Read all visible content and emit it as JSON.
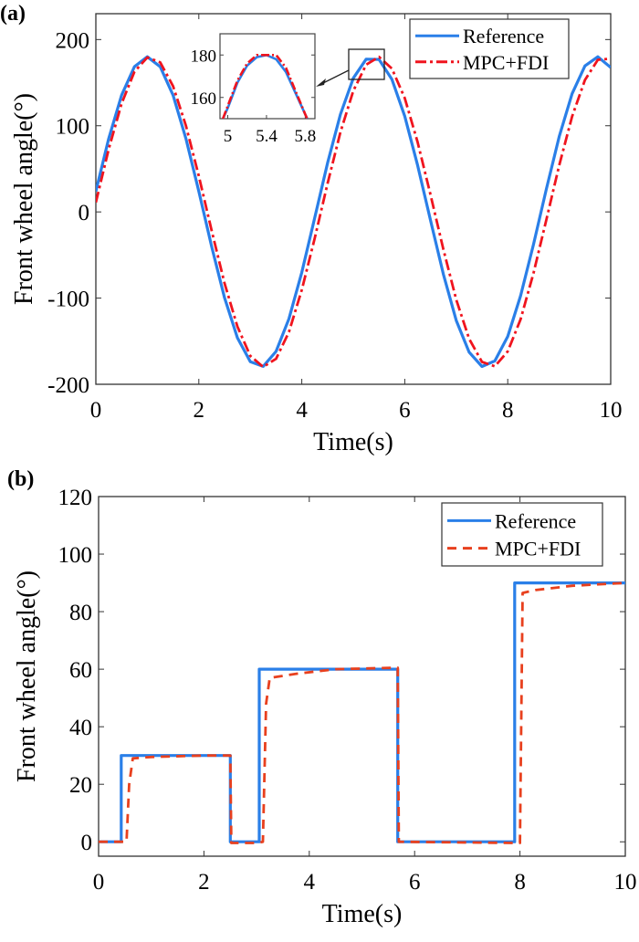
{
  "chart_data": [
    {
      "panel_label": "(a)",
      "type": "line",
      "xlabel": "Time(s)",
      "ylabel": "Front wheel angle(°)",
      "xlim": [
        0,
        10
      ],
      "ylim": [
        -200,
        230
      ],
      "xticks": [
        0,
        2,
        4,
        6,
        8,
        10
      ],
      "yticks": [
        -200,
        -100,
        0,
        100,
        200
      ],
      "grid": false,
      "legend_position": "top-right",
      "x": [
        0,
        0.25,
        0.5,
        0.75,
        1,
        1.25,
        1.5,
        1.75,
        2,
        2.25,
        2.5,
        2.75,
        3,
        3.25,
        3.5,
        3.75,
        4,
        4.25,
        4.5,
        4.75,
        5,
        5.25,
        5.5,
        5.75,
        6,
        6.25,
        6.5,
        6.75,
        7,
        7.25,
        7.5,
        7.75,
        8,
        8.25,
        8.5,
        8.75,
        9,
        9.25,
        9.5,
        9.75,
        10
      ],
      "series": [
        {
          "name": "Reference",
          "color": "#2a7fe8",
          "style": "solid",
          "values": [
            23.9,
            85.1,
            135.4,
            168.6,
            180,
            168.5,
            135.4,
            85.0,
            23.9,
            -40.4,
            -99.7,
            -146.1,
            -173.7,
            -179.2,
            -161.9,
            -124.1,
            -70.1,
            -7.1,
            56.6,
            113.1,
            155.1,
            177.3,
            176.9,
            153.9,
            111.1,
            54.0,
            -9.7,
            -72.3,
            -126.0,
            -162.7,
            -179.4,
            -172.9,
            -144.5,
            -97.3,
            -37.8,
            26.4,
            87.4,
            137.1,
            169.4,
            180,
            167.6
          ]
        },
        {
          "name": "MPC+FDI",
          "color": "#f0141e",
          "style": "dash-dot",
          "values": [
            11.0,
            72.9,
            125.7,
            162.7,
            179.3,
            173.5,
            145.9,
            99.9,
            41.6,
            -21.9,
            -82.9,
            -133.1,
            -167.1,
            -179.9,
            -170.5,
            -139.4,
            -90.5,
            -30.9,
            32.8,
            92.4,
            140.4,
            170.8,
            179.9,
            166.4,
            132.0,
            80.9,
            20.0,
            -43.5,
            -101.8,
            -147.2,
            -174.0,
            -179.1,
            -161.9,
            -124.6,
            -71.2,
            -9.1,
            54.1,
            110.6,
            153.1,
            176.5,
            177.8
          ]
        }
      ],
      "inset": {
        "xlim": [
          4.92,
          5.9
        ],
        "ylim": [
          150,
          190
        ],
        "xticks": [
          5,
          5.4,
          5.8
        ],
        "yticks": [
          160,
          180
        ],
        "x": [
          4.95,
          5.0,
          5.1,
          5.2,
          5.3,
          5.4,
          5.5,
          5.6,
          5.7,
          5.8,
          5.82
        ],
        "reference": [
          150,
          155,
          167,
          175,
          179,
          180,
          178,
          172,
          162,
          152,
          150
        ],
        "mpc_fdi": [
          150,
          156,
          168,
          176,
          180,
          180,
          180,
          174,
          163,
          152,
          150
        ]
      }
    },
    {
      "panel_label": "(b)",
      "type": "line",
      "xlabel": "Time(s)",
      "ylabel": "Front wheel angle(°)",
      "xlim": [
        0,
        10
      ],
      "ylim": [
        -5,
        120
      ],
      "xticks": [
        0,
        2,
        4,
        6,
        8,
        10
      ],
      "yticks": [
        0,
        20,
        40,
        60,
        80,
        100,
        120
      ],
      "grid": false,
      "legend_position": "top-right",
      "series": [
        {
          "name": "Reference",
          "color": "#2a7fe8",
          "style": "solid",
          "x": [
            0,
            0.43,
            0.43,
            2.5,
            2.5,
            3.05,
            3.05,
            5.68,
            5.68,
            7.9,
            7.9,
            10
          ],
          "y": [
            0,
            0,
            30,
            30,
            0,
            0,
            60,
            60,
            0,
            0,
            90,
            90
          ]
        },
        {
          "name": "MPC+FDI",
          "color": "#e8401e",
          "style": "dashed",
          "x": [
            0,
            0.53,
            0.58,
            0.65,
            1.0,
            2.0,
            2.5,
            2.52,
            3.0,
            3.12,
            3.18,
            3.25,
            3.8,
            4.5,
            5.68,
            5.7,
            7.9,
            8.0,
            8.05,
            8.3,
            9.0,
            10
          ],
          "y": [
            0,
            0,
            20,
            29,
            29.5,
            30,
            30,
            -0.4,
            -0.4,
            0,
            48,
            57,
            58.5,
            60,
            60.5,
            0,
            -0.4,
            -0.4,
            86.5,
            87.5,
            89,
            90
          ]
        }
      ]
    }
  ]
}
